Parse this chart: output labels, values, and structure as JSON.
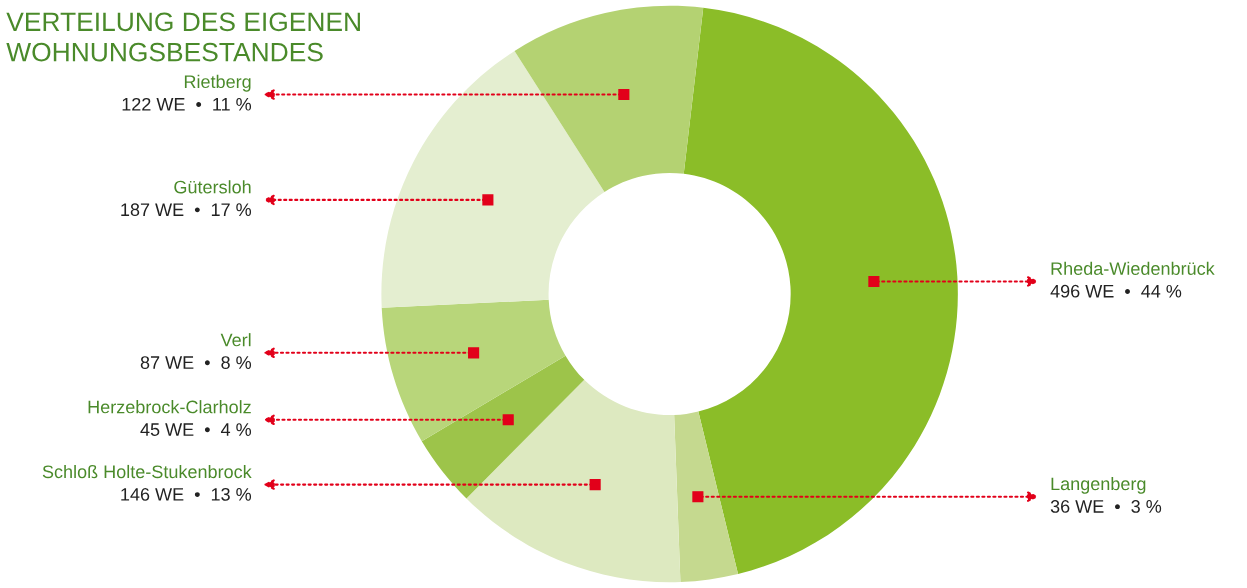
{
  "chart_data": {
    "type": "donut",
    "title": "VERTEILUNG DES EIGENEN\nWOHNUNGSBESTANDES",
    "categories": [
      "Rheda-Wiedenbrück",
      "Langenberg",
      "Schloß Holte-Stukenbrock",
      "Herzebrock-Clarholz",
      "Verl",
      "Gütersloh",
      "Rietberg"
    ],
    "values": [
      496,
      36,
      146,
      45,
      87,
      187,
      122
    ],
    "colors": [
      "#8bbd28",
      "#c5d98f",
      "#dde9c0",
      "#9dc44a",
      "#b8d67a",
      "#e4eed0",
      "#b4d272"
    ],
    "value_labels": [
      "496 WE  •  44 %",
      "36 WE  •  3 %",
      "146 WE  •  13 %",
      "45 WE  •  4 %",
      "87 WE  •  8 %",
      "187 WE  •  17 %",
      "122 WE  •  11 %"
    ],
    "legend": false
  }
}
